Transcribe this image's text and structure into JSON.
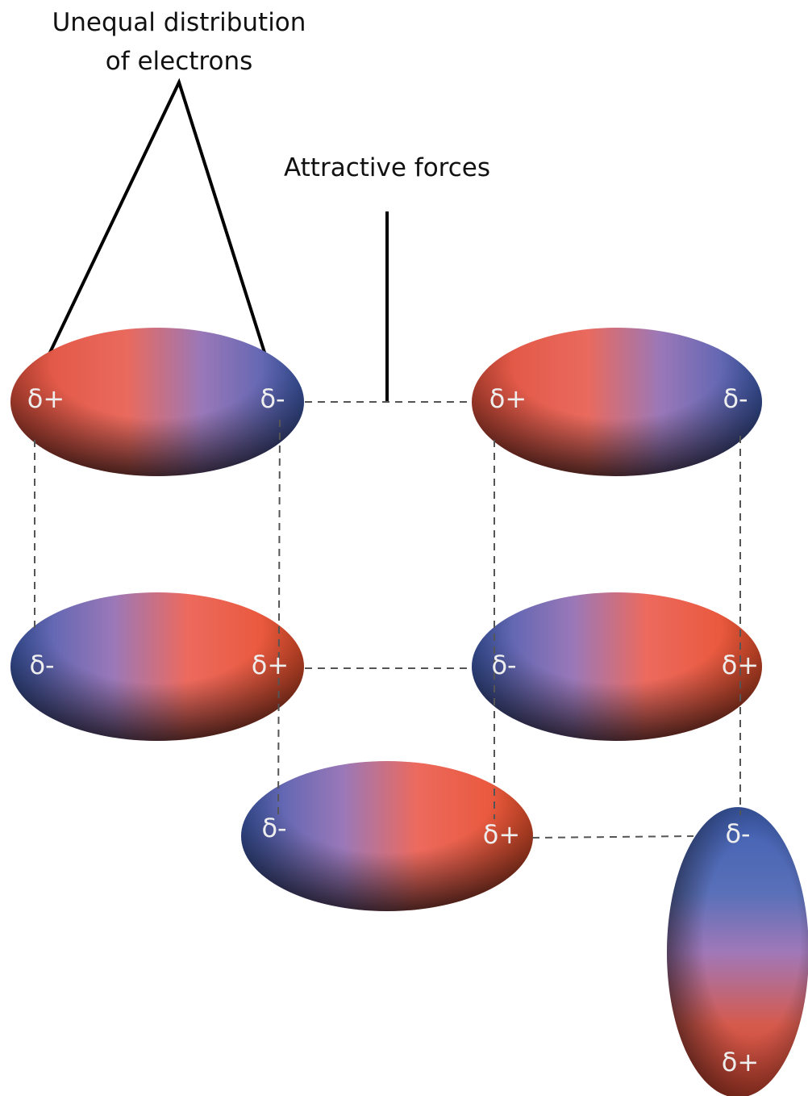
{
  "annotations": {
    "electrons": [
      "Unequal distribution",
      "of electrons"
    ],
    "forces": "Attractive forces"
  },
  "molecules": [
    {
      "left": "δ+",
      "right": "δ-"
    },
    {
      "left": "δ+",
      "right": "δ-"
    },
    {
      "left": "δ-",
      "right": "δ+"
    },
    {
      "left": "δ-",
      "right": "δ+"
    },
    {
      "left": "δ-",
      "right": "δ+"
    },
    {
      "top": "δ-",
      "bottom": "δ+"
    }
  ]
}
